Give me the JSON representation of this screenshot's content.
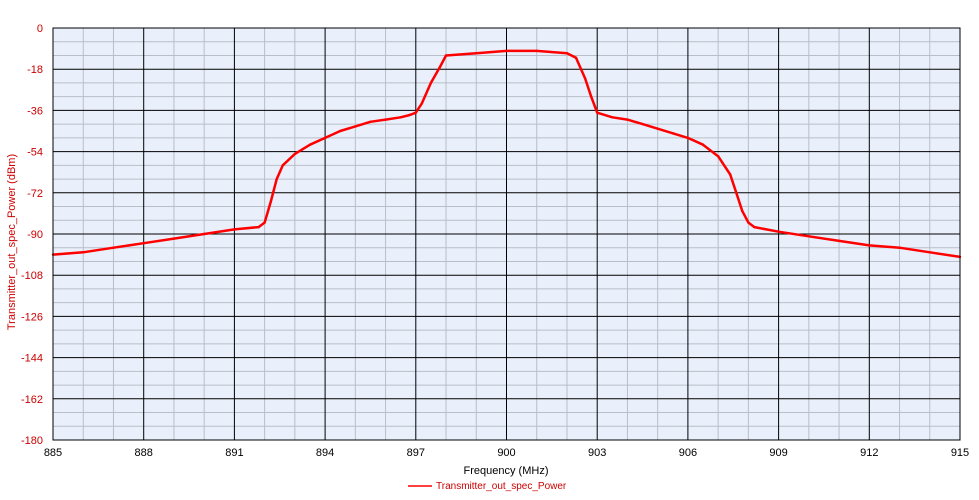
{
  "chart_data": {
    "type": "line",
    "xlabel": "Frequency (MHz)",
    "ylabel": "Transmitter_out_spec_Power (dBm)",
    "xlim": [
      885,
      915
    ],
    "ylim": [
      -180,
      0
    ],
    "x_ticks": [
      885,
      888,
      891,
      894,
      897,
      900,
      903,
      906,
      909,
      912,
      915
    ],
    "y_ticks": [
      0,
      -18,
      -36,
      -54,
      -72,
      -90,
      -108,
      -126,
      -144,
      -162,
      -180
    ],
    "x_tick_labels": [
      "885",
      "888",
      "891",
      "894",
      "897",
      "900",
      "903",
      "906",
      "909",
      "912",
      "915"
    ],
    "y_tick_labels": [
      "0",
      "-18",
      "-36",
      "-54",
      "-72",
      "-90",
      "-108",
      "-126",
      "-144",
      "-162",
      "-180"
    ],
    "grid": true,
    "minor_grid": true,
    "legend_position": "bottom-center",
    "colors": {
      "series": "#ff0000",
      "plot_background": "#eaf0fb",
      "major_grid": "#000000",
      "minor_grid": "#b9bec8",
      "axis_text": "#cc0000"
    },
    "series": [
      {
        "name": "Transmitter_out_spec_Power",
        "x": [
          885.0,
          886.0,
          887.0,
          888.0,
          889.0,
          890.0,
          891.0,
          891.8,
          892.0,
          892.2,
          892.4,
          892.6,
          893.0,
          893.5,
          894.0,
          894.5,
          895.0,
          895.5,
          896.0,
          896.5,
          896.8,
          897.0,
          897.2,
          897.5,
          897.8,
          898.0,
          899.0,
          900.0,
          901.0,
          902.0,
          902.3,
          902.6,
          902.8,
          903.0,
          903.5,
          904.0,
          904.5,
          905.0,
          905.5,
          906.0,
          906.5,
          907.0,
          907.4,
          907.6,
          907.8,
          908.0,
          908.2,
          909.0,
          910.0,
          911.0,
          912.0,
          913.0,
          914.0,
          915.0
        ],
        "y": [
          -99,
          -98,
          -96,
          -94,
          -92,
          -90,
          -88,
          -87,
          -85,
          -76,
          -66,
          -60,
          -55,
          -51,
          -48,
          -45,
          -43,
          -41,
          -40,
          -39,
          -38,
          -37,
          -33,
          -24,
          -17,
          -12,
          -11,
          -10,
          -10,
          -11,
          -13,
          -22,
          -30,
          -37,
          -39,
          -40,
          -42,
          -44,
          -46,
          -48,
          -51,
          -56,
          -64,
          -72,
          -80,
          -85,
          -87,
          -89,
          -91,
          -93,
          -95,
          -96,
          -98,
          -100
        ]
      }
    ]
  }
}
